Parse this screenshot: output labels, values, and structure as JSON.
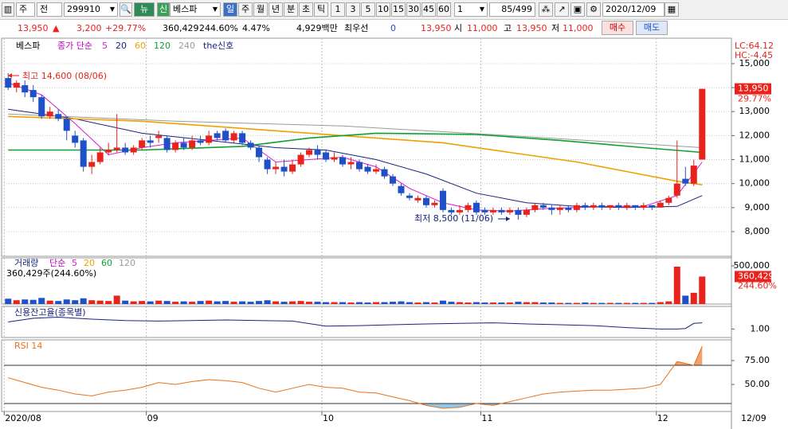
{
  "toolbar": {
    "market": "주",
    "range": "전",
    "code": "299910",
    "news": "뉴",
    "credit": "신",
    "name": "베스파",
    "periods": [
      "일",
      "주",
      "월",
      "년",
      "분",
      "초",
      "틱"
    ],
    "intervals": [
      "1",
      "3",
      "5",
      "10",
      "15",
      "30",
      "45",
      "60"
    ],
    "unit": "1",
    "count": "85/499",
    "date": "2020/12/09"
  },
  "quote": {
    "price": "13,950",
    "change": "3,200",
    "rate": "+29.77%",
    "volume": "360,429",
    "volume_rate": "244.60%",
    "turnover": "4.47%",
    "amount": "4,929백만",
    "best_label": "최우선",
    "best": "0",
    "ask": "13,950",
    "open_label": "시",
    "open": "11,000",
    "high_label": "고",
    "high": "13,950",
    "low_label": "저",
    "low": "11,000",
    "buy": "매수",
    "sell": "매도"
  },
  "chart_data": [
    {
      "type": "candlestick",
      "title": "베스파",
      "ma_label": "종가 단순",
      "signal_label": "the신호",
      "signal_color": "#1a237e",
      "up_color": "#e8231b",
      "down_color": "#1f50c8",
      "open": [
        14400,
        14000,
        14100,
        13900,
        13600,
        12800,
        12900,
        12700,
        12000,
        11800,
        10700,
        10900,
        11300,
        11400,
        11500,
        11300,
        11500,
        11800,
        11900,
        11900,
        11400,
        11700,
        11500,
        11800,
        11700,
        12100,
        12200,
        11800,
        12100,
        11700,
        11500,
        11000,
        10600,
        10700,
        10500,
        10800,
        11200,
        11400,
        11300,
        11000,
        11100,
        10800,
        10900,
        10700,
        10500,
        10600,
        10300,
        9900,
        9500,
        9300,
        9400,
        9100,
        9700,
        8900,
        8800,
        8900,
        9200,
        8900,
        8800,
        8900,
        8800,
        8900,
        8700,
        8900,
        9100,
        9000,
        8900,
        9000,
        8900,
        9100,
        9000,
        9100,
        9000,
        9100,
        9000,
        9100,
        9000,
        9100,
        9000,
        9200,
        9500,
        10200,
        10000,
        11000
      ],
      "high": [
        14600,
        14300,
        14300,
        14100,
        13700,
        13200,
        13100,
        12800,
        12200,
        11900,
        11200,
        11500,
        11700,
        12900,
        11700,
        11600,
        11900,
        12000,
        12200,
        12000,
        11800,
        11900,
        12000,
        12000,
        12200,
        12200,
        12300,
        12200,
        12200,
        11800,
        11600,
        11100,
        10900,
        11000,
        11000,
        11300,
        11500,
        11600,
        11400,
        11300,
        11200,
        11100,
        11000,
        10800,
        10800,
        10700,
        10400,
        10000,
        9600,
        9500,
        9500,
        9300,
        9800,
        9000,
        9100,
        9200,
        9300,
        9000,
        9000,
        9000,
        9000,
        9000,
        9000,
        9200,
        9200,
        9100,
        9100,
        9100,
        9200,
        9200,
        9200,
        9200,
        9100,
        9200,
        9200,
        9100,
        9200,
        9100,
        9300,
        9500,
        11800,
        10700,
        11000,
        13950
      ],
      "low": [
        13900,
        13800,
        13600,
        13400,
        12700,
        12700,
        12600,
        11800,
        11500,
        10500,
        10400,
        10800,
        11200,
        11300,
        11200,
        11200,
        11400,
        11500,
        11700,
        11300,
        11300,
        11400,
        11400,
        11600,
        11600,
        11800,
        11700,
        11700,
        11600,
        11400,
        10900,
        10400,
        10400,
        10300,
        10400,
        10700,
        11100,
        11000,
        10900,
        10900,
        10700,
        10600,
        10500,
        10400,
        10400,
        10200,
        9900,
        9500,
        9300,
        9200,
        9000,
        9000,
        8800,
        8700,
        8700,
        8800,
        8700,
        8700,
        8700,
        8700,
        8700,
        8500,
        8600,
        8800,
        8900,
        8700,
        8700,
        8800,
        8800,
        8900,
        8900,
        8900,
        8900,
        8900,
        8900,
        8900,
        8900,
        8900,
        9000,
        9100,
        9400,
        9900,
        9900,
        11000
      ],
      "close": [
        14000,
        14200,
        13800,
        13600,
        12800,
        13000,
        12700,
        12200,
        11700,
        10700,
        10900,
        11300,
        11400,
        11500,
        11300,
        11500,
        11800,
        11700,
        12000,
        11400,
        11700,
        11500,
        11800,
        11700,
        12000,
        11900,
        11800,
        12100,
        11700,
        11500,
        11100,
        10600,
        10700,
        10500,
        10800,
        11200,
        11400,
        11200,
        11000,
        11100,
        10800,
        10900,
        10600,
        10500,
        10600,
        10300,
        10000,
        9600,
        9400,
        9400,
        9100,
        9200,
        8900,
        8800,
        8900,
        9100,
        8800,
        8800,
        8900,
        8800,
        8900,
        8700,
        8900,
        9100,
        9000,
        8900,
        9000,
        8900,
        9100,
        9000,
        9100,
        9000,
        9100,
        9000,
        9100,
        9000,
        9100,
        9000,
        9200,
        9400,
        10000,
        10000,
        10750,
        13950
      ],
      "series": [
        {
          "name": "5",
          "color": "#d81ad8",
          "x": [
            0,
            4,
            8,
            12,
            16,
            20,
            24,
            28,
            32,
            36,
            40,
            44,
            48,
            52,
            56,
            60,
            64,
            68,
            72,
            76,
            80,
            83
          ],
          "values": [
            14200,
            13700,
            12500,
            11200,
            11500,
            11700,
            11800,
            11900,
            10900,
            11000,
            11100,
            10700,
            9800,
            9200,
            8900,
            8850,
            8950,
            9000,
            9050,
            9050,
            9500,
            10900
          ]
        },
        {
          "name": "20",
          "color": "#1a237e",
          "x": [
            0,
            8,
            16,
            24,
            32,
            38,
            44,
            50,
            56,
            62,
            68,
            74,
            80,
            83
          ],
          "values": [
            13100,
            12700,
            12100,
            11800,
            11500,
            11400,
            11000,
            10400,
            9600,
            9200,
            9050,
            9000,
            9050,
            9500
          ]
        },
        {
          "name": "60",
          "color": "#f0a000",
          "x": [
            0,
            16,
            28,
            40,
            52,
            60,
            68,
            74,
            80,
            83
          ],
          "values": [
            12800,
            12600,
            12300,
            12000,
            11700,
            11300,
            10900,
            10500,
            10100,
            9950
          ]
        },
        {
          "name": "120",
          "color": "#10a030",
          "x": [
            0,
            16,
            28,
            36,
            44,
            56,
            66,
            76,
            83
          ],
          "values": [
            11400,
            11400,
            11550,
            11900,
            12100,
            12050,
            11800,
            11500,
            11300
          ]
        },
        {
          "name": "240",
          "color": "#9a9a9a",
          "x": [
            0,
            20,
            40,
            60,
            83
          ],
          "values": [
            12900,
            12600,
            12400,
            12000,
            11500
          ]
        }
      ],
      "xlim": [
        -0.5,
        86.5
      ],
      "ylim": [
        6970,
        16060
      ],
      "yticks": [
        {
          "value": 15000,
          "label": "15,000"
        },
        {
          "value": 14000,
          "label": "14,000"
        },
        {
          "value": 13000,
          "label": "13,000"
        },
        {
          "value": 12000,
          "label": "12,000"
        },
        {
          "value": 11000,
          "label": "11,000"
        },
        {
          "value": 10000,
          "label": "10,000"
        },
        {
          "value": 9000,
          "label": "9,000"
        },
        {
          "value": 8000,
          "label": "8,000"
        }
      ],
      "grid": true,
      "lc_label": "LC:64.12",
      "hc_label": "HC:-4.45",
      "last_label": "13,950",
      "last_rate": "29.77%",
      "annotations": [
        {
          "text": "최고 14,600 (08/06)",
          "color": "#e8231b"
        },
        {
          "text": "최저 8,500 (11/06)",
          "color": "#1a237e"
        }
      ]
    },
    {
      "type": "bar",
      "title": "거래량",
      "ma_label": "단순",
      "legend_items": [
        {
          "text": "5",
          "color": "#d81ad8"
        },
        {
          "text": "20",
          "color": "#f0a000"
        },
        {
          "text": "60",
          "color": "#10a030"
        },
        {
          "text": "120",
          "color": "#9a9a9a"
        }
      ],
      "summary": "360,429주(244.60%)",
      "values": [
        70000,
        50000,
        60000,
        55000,
        80000,
        45000,
        40000,
        60000,
        50000,
        75000,
        50000,
        45000,
        40000,
        110000,
        45000,
        35000,
        40000,
        35000,
        45000,
        40000,
        30000,
        35000,
        30000,
        40000,
        45000,
        35000,
        40000,
        30000,
        35000,
        30000,
        40000,
        50000,
        35000,
        30000,
        35000,
        40000,
        30000,
        30000,
        25000,
        25000,
        25000,
        20000,
        25000,
        20000,
        25000,
        25000,
        30000,
        35000,
        25000,
        20000,
        25000,
        20000,
        45000,
        30000,
        25000,
        20000,
        25000,
        20000,
        20000,
        20000,
        20000,
        30000,
        25000,
        25000,
        20000,
        20000,
        15000,
        15000,
        15000,
        20000,
        15000,
        15000,
        15000,
        15000,
        15000,
        15000,
        15000,
        15000,
        25000,
        35000,
        490000,
        110000,
        147356,
        360429
      ],
      "xlim": [
        -0.5,
        86.5
      ],
      "ylim": [
        0,
        605000
      ],
      "yticks": [
        {
          "value": 500000,
          "label": "500,000"
        }
      ],
      "last_label": "360,429",
      "last_rate": "244.60%"
    },
    {
      "type": "line",
      "title": "신용잔고율(종목별)",
      "color": "#1a237e",
      "x": [
        0,
        3,
        6,
        10,
        14,
        18,
        22,
        26,
        30,
        34,
        38,
        42,
        46,
        50,
        54,
        58,
        62,
        66,
        70,
        74,
        78,
        80,
        81,
        82,
        83
      ],
      "values": [
        1.25,
        1.38,
        1.42,
        1.35,
        1.3,
        1.28,
        1.3,
        1.32,
        1.3,
        1.28,
        1.1,
        1.12,
        1.15,
        1.18,
        1.2,
        1.22,
        1.18,
        1.15,
        1.12,
        1.05,
        1.0,
        1.0,
        1.02,
        1.2,
        1.22
      ],
      "xlim": [
        -0.5,
        86.5
      ],
      "ylim": [
        0.7,
        1.8
      ],
      "yticks": [
        {
          "value": 1,
          "label": "1.00"
        }
      ]
    },
    {
      "type": "line",
      "title": "RSI 14",
      "color": "#e8731b",
      "x": [
        0,
        2,
        4,
        6,
        8,
        10,
        12,
        14,
        16,
        18,
        20,
        22,
        24,
        26,
        28,
        30,
        32,
        34,
        36,
        38,
        40,
        42,
        44,
        46,
        48,
        50,
        52,
        54,
        56,
        58,
        60,
        62,
        64,
        66,
        68,
        70,
        72,
        74,
        76,
        78,
        80,
        82,
        83
      ],
      "values": [
        57,
        52,
        47,
        44,
        40,
        38,
        42,
        44,
        47,
        52,
        50,
        53,
        55,
        54,
        52,
        46,
        42,
        46,
        50,
        47,
        46,
        42,
        41,
        37,
        33,
        28,
        25,
        26,
        30,
        28,
        32,
        36,
        40,
        42,
        43,
        44,
        44,
        45,
        46,
        50,
        74,
        70,
        90
      ],
      "xlim": [
        -0.5,
        86.5
      ],
      "ylim": [
        21.7,
        96.7
      ],
      "yticks": [
        {
          "value": 75,
          "label": "75.00"
        },
        {
          "value": 50,
          "label": "50.00"
        }
      ],
      "levels": [
        70,
        30
      ],
      "high_fill": "#f4a070",
      "low_fill": "#8fc8ea",
      "xticks": [
        {
          "value": 0,
          "label": "2020/08"
        },
        {
          "value": 17,
          "label": "09"
        },
        {
          "value": 38,
          "label": "10"
        },
        {
          "value": 57,
          "label": "11"
        },
        {
          "value": 78,
          "label": "12"
        }
      ],
      "x_end_label": "12/09"
    }
  ]
}
